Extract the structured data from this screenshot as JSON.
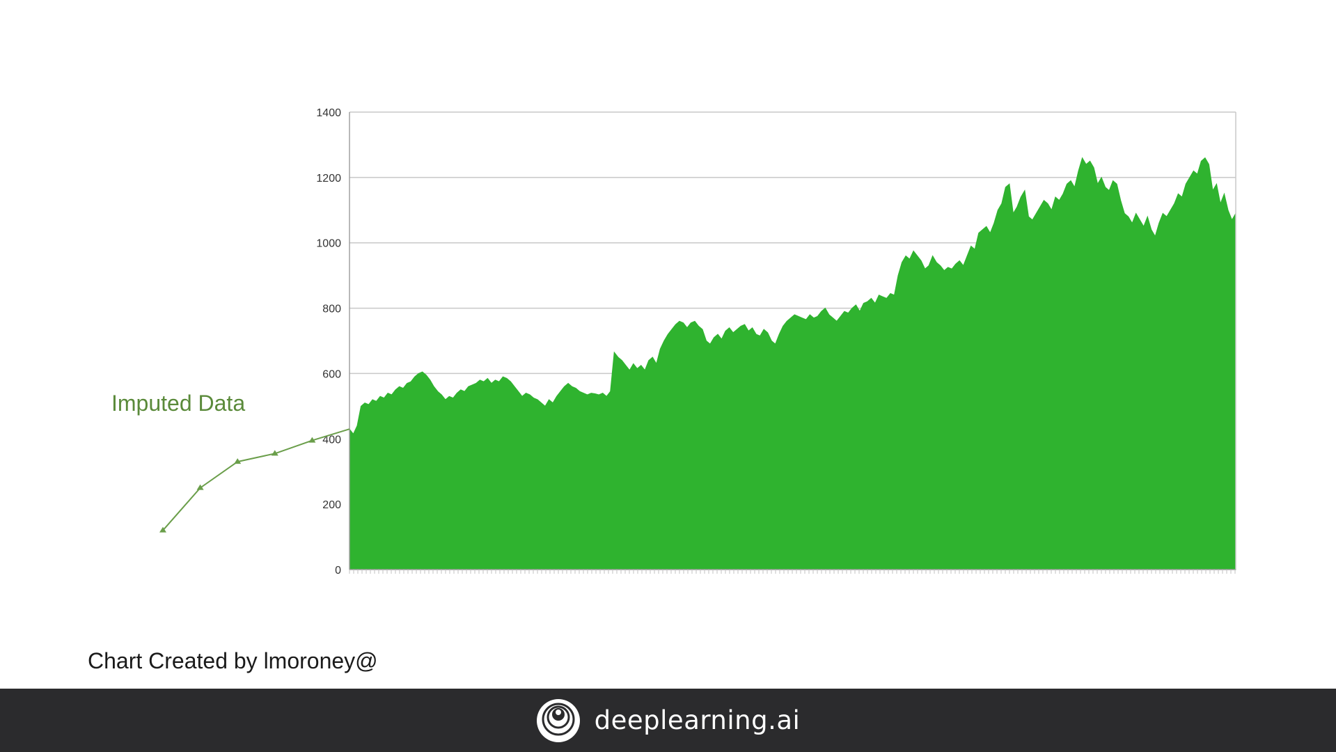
{
  "chart_data": {
    "type": "area",
    "title": "",
    "xlabel": "",
    "ylabel": "",
    "ylim": [
      0,
      1400
    ],
    "yticks": [
      0,
      200,
      400,
      600,
      800,
      1000,
      1200,
      1400
    ],
    "grid": true,
    "color": "#2fb32f",
    "series": [
      {
        "values": [
          430,
          415,
          440,
          500,
          510,
          505,
          520,
          515,
          530,
          525,
          540,
          535,
          550,
          560,
          555,
          570,
          575,
          590,
          600,
          605,
          595,
          580,
          560,
          545,
          535,
          520,
          530,
          525,
          540,
          550,
          545,
          560,
          565,
          570,
          580,
          575,
          585,
          570,
          580,
          575,
          590,
          585,
          575,
          560,
          545,
          530,
          540,
          535,
          525,
          520,
          510,
          500,
          520,
          510,
          530,
          545,
          560,
          570,
          560,
          555,
          545,
          540,
          535,
          540,
          538,
          535,
          540,
          530,
          545,
          665,
          650,
          640,
          625,
          610,
          630,
          615,
          625,
          610,
          640,
          650,
          630,
          675,
          700,
          720,
          735,
          750,
          760,
          755,
          740,
          755,
          760,
          745,
          735,
          700,
          690,
          710,
          720,
          705,
          730,
          740,
          725,
          735,
          745,
          750,
          730,
          740,
          720,
          715,
          735,
          725,
          700,
          690,
          720,
          745,
          760,
          770,
          780,
          775,
          770,
          765,
          780,
          770,
          775,
          790,
          800,
          780,
          770,
          760,
          775,
          790,
          785,
          800,
          810,
          790,
          815,
          820,
          830,
          815,
          840,
          835,
          830,
          845,
          840,
          900,
          940,
          960,
          950,
          975,
          960,
          945,
          920,
          930,
          960,
          940,
          930,
          915,
          925,
          920,
          935,
          945,
          930,
          960,
          990,
          980,
          1030,
          1040,
          1050,
          1030,
          1060,
          1100,
          1120,
          1170,
          1180,
          1090,
          1110,
          1140,
          1160,
          1080,
          1070,
          1090,
          1110,
          1130,
          1120,
          1100,
          1140,
          1130,
          1150,
          1180,
          1190,
          1170,
          1220,
          1260,
          1240,
          1250,
          1230,
          1180,
          1200,
          1170,
          1160,
          1190,
          1180,
          1130,
          1090,
          1080,
          1060,
          1090,
          1070,
          1050,
          1080,
          1040,
          1020,
          1060,
          1090,
          1080,
          1100,
          1120,
          1150,
          1140,
          1180,
          1200,
          1220,
          1210,
          1250,
          1260,
          1240,
          1160,
          1180,
          1120,
          1150,
          1100,
          1070,
          1090
        ]
      }
    ],
    "imputed": {
      "line_color": "#6a9e4a",
      "values": [
        120,
        250,
        330,
        355,
        395,
        430
      ]
    }
  },
  "annotations": {
    "imputed_label": "Imputed Data"
  },
  "credit": "Chart Created by lmoroney@",
  "footer": {
    "brand": "deeplearning.ai",
    "icon": "deeplearning-logo-icon"
  }
}
